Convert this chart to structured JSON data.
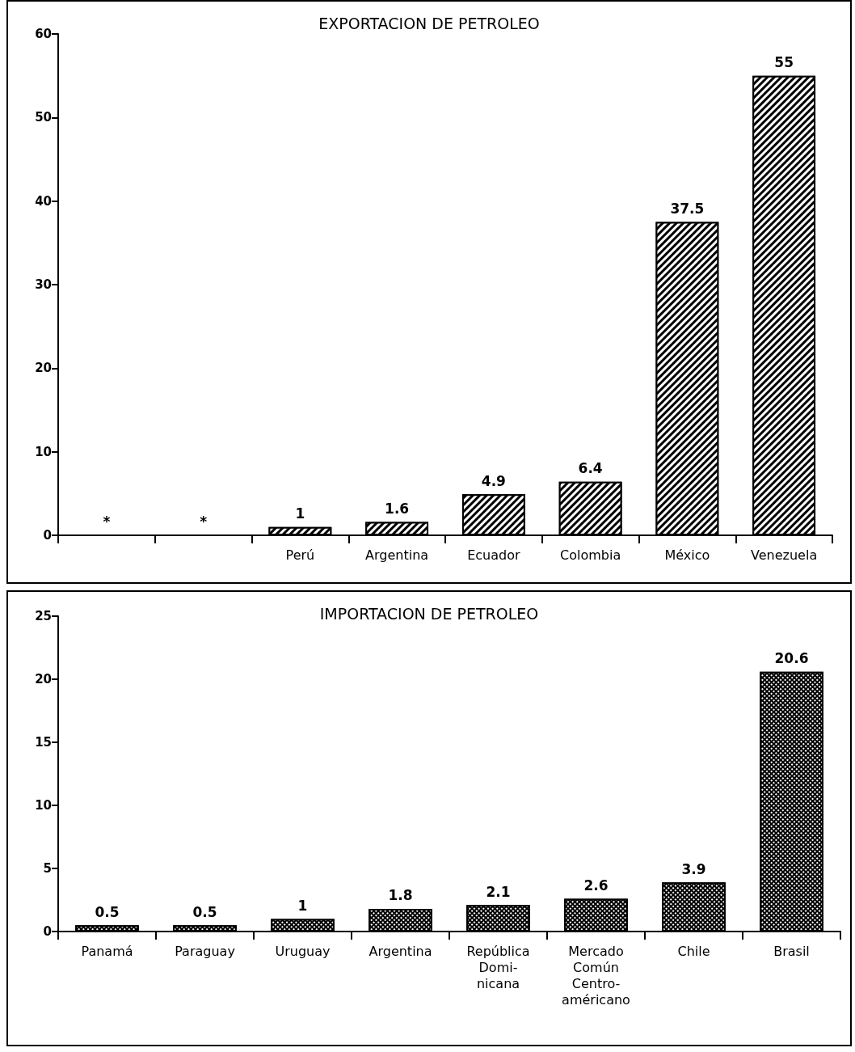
{
  "chart_data": [
    {
      "type": "bar",
      "title": "EXPORTACION DE PETROLEO",
      "categories": [
        null,
        null,
        "Perú",
        "Argentina",
        "Ecuador",
        "Colombia",
        "México",
        "Venezuela"
      ],
      "series": [
        {
          "color": "#000000",
          "values": [
            0,
            0,
            1,
            1.6,
            4.9,
            6.4,
            37.5,
            55
          ],
          "value_labels": [
            "*",
            "*",
            "1",
            "1.6",
            "4.9",
            "6.4",
            "37.5",
            "55"
          ]
        }
      ],
      "ylim": [
        0,
        60
      ],
      "yticks": [
        0,
        10,
        20,
        30,
        40,
        50,
        60
      ],
      "grid": false
    },
    {
      "type": "bar",
      "title": "IMPORTACION DE PETROLEO",
      "categories": [
        "Panamá",
        "Paraguay",
        "Uruguay",
        "Argentina",
        "República\nDomi-\nnicana",
        "Mercado\nComún\nCentro-\naméricano",
        "Chile",
        "Brasil"
      ],
      "series": [
        {
          "color": "#000000",
          "values": [
            0.5,
            0.5,
            1,
            1.8,
            2.1,
            2.6,
            3.9,
            20.6
          ]
        }
      ],
      "data_labels": true,
      "ylim": [
        0,
        25
      ],
      "yticks": [
        0,
        5,
        10,
        15,
        20,
        25
      ],
      "grid": false
    }
  ]
}
